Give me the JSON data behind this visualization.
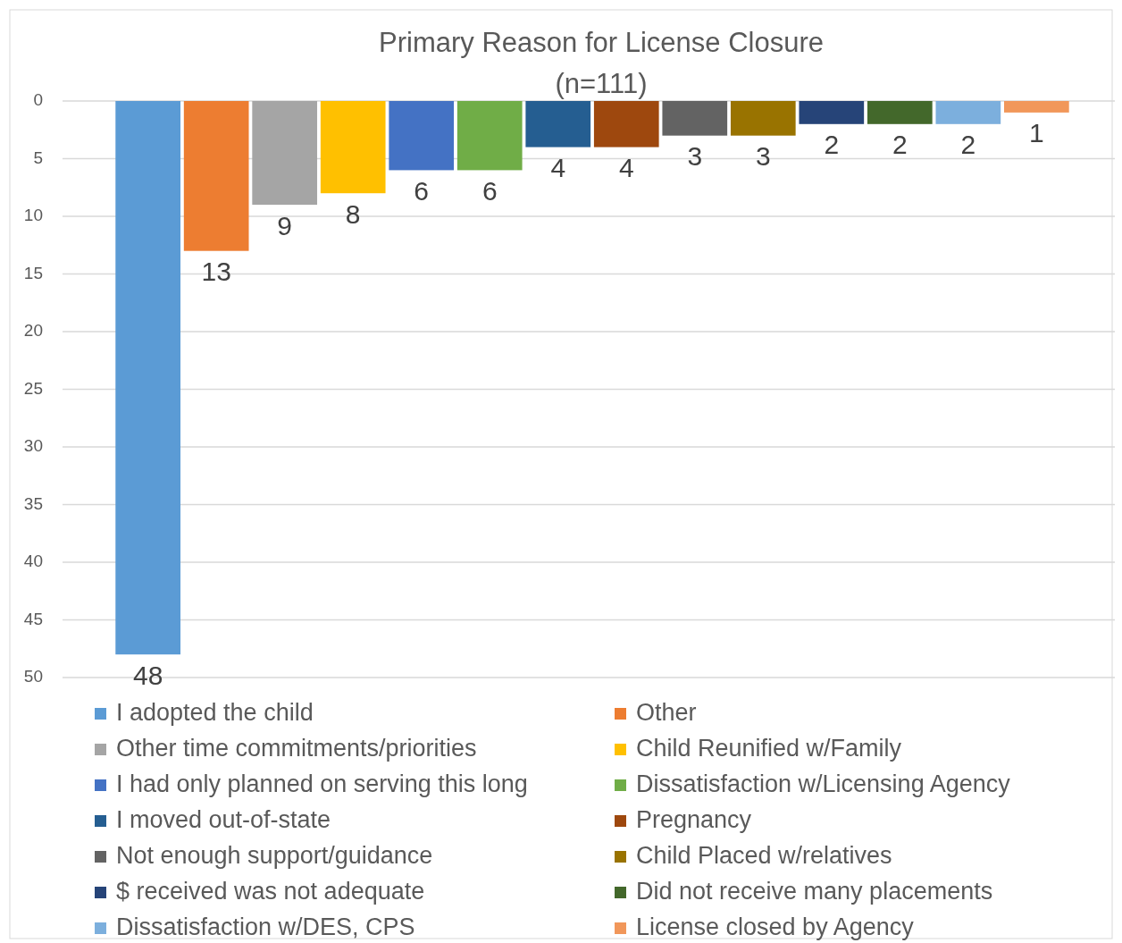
{
  "chart_data": {
    "type": "bar",
    "title": "Primary Reason for License Closure",
    "subtitle": "(n=111)",
    "categories": [
      null
    ],
    "series": [
      {
        "name": "I adopted the child",
        "color": "#5b9bd5",
        "values": [
          48
        ]
      },
      {
        "name": "Other",
        "color": "#ed7d31",
        "values": [
          13
        ]
      },
      {
        "name": "Other time commitments/priorities",
        "color": "#a5a5a5",
        "values": [
          9
        ]
      },
      {
        "name": "Child Reunified w/Family",
        "color": "#ffc000",
        "values": [
          8
        ]
      },
      {
        "name": "I had only planned on serving this long",
        "color": "#4472c4",
        "values": [
          6
        ]
      },
      {
        "name": "Dissatisfaction w/Licensing Agency",
        "color": "#70ad47",
        "values": [
          6
        ]
      },
      {
        "name": "I moved out-of-state",
        "color": "#255e91",
        "values": [
          4
        ]
      },
      {
        "name": "Pregnancy",
        "color": "#9e480e",
        "values": [
          4
        ]
      },
      {
        "name": "Not enough support/guidance",
        "color": "#636363",
        "values": [
          3
        ]
      },
      {
        "name": "Child Placed w/relatives",
        "color": "#997300",
        "values": [
          3
        ]
      },
      {
        "name": "$ received was not adequate",
        "color": "#264478",
        "values": [
          2
        ]
      },
      {
        "name": "Did not receive many placements",
        "color": "#43682b",
        "values": [
          2
        ]
      },
      {
        "name": "Dissatisfaction w/DES, CPS",
        "color": "#7cafdd",
        "values": [
          2
        ]
      },
      {
        "name": "License closed by Agency",
        "color": "#f1975a",
        "values": [
          1
        ]
      }
    ],
    "ylim": [
      50,
      0
    ],
    "yticks": [
      0,
      5,
      10,
      15,
      20,
      25,
      30,
      35,
      40,
      45,
      50
    ],
    "grid": "y",
    "data_labels": true,
    "legend": "bottom"
  }
}
